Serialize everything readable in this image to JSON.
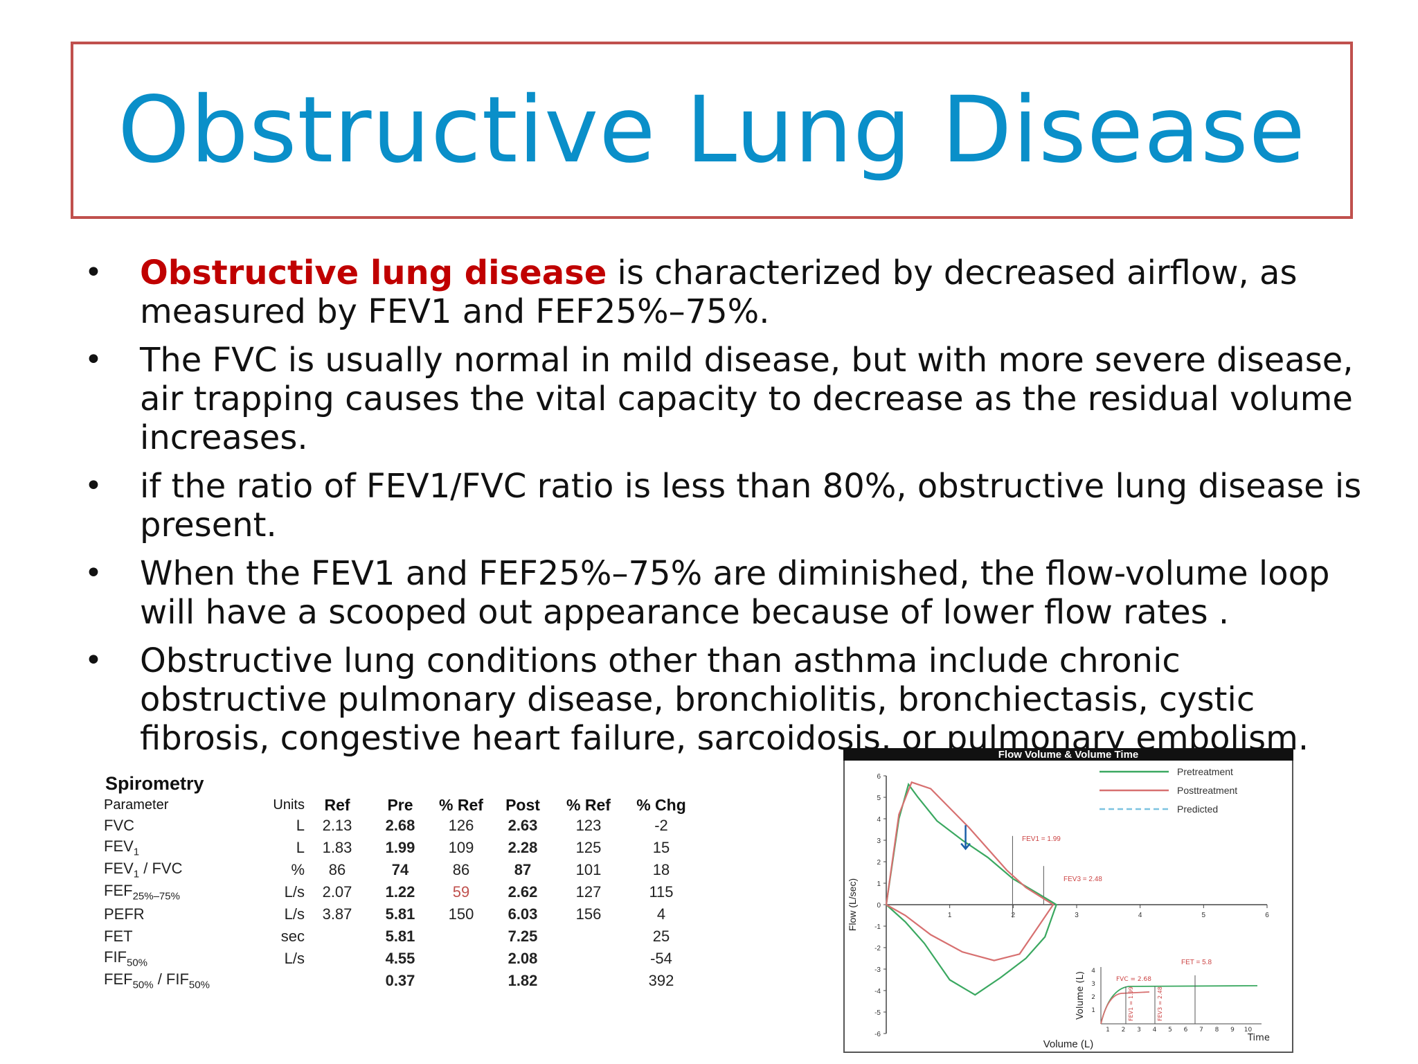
{
  "slide": {
    "title": "Obstructive Lung Disease"
  },
  "bullets": [
    {
      "highlight": "Obstructive lung disease",
      "text": " is characterized by decreased airflow, as measured by FEV1 and FEF25%–75%."
    },
    {
      "highlight": "",
      "text": "The FVC is usually normal in mild disease, but with more severe disease, air trapping causes the vital capacity to decrease as the residual volume increases."
    },
    {
      "highlight": "",
      "text": "if the ratio of FEV1/FVC ratio is less than 80%, obstructive lung disease is present."
    },
    {
      "highlight": "",
      "text": "When the FEV1 and FEF25%–75% are diminished, the flow-volume loop will have a scooped out appearance because of lower flow rates ."
    },
    {
      "highlight": "",
      "text": "Obstructive lung conditions other than asthma include chronic obstructive pulmonary disease, bronchiolitis, bronchiectasis, cystic fibrosis, congestive heart failure, sarcoidosis, or pulmonary embolism."
    }
  ],
  "spirometry": {
    "heading": "Spirometry",
    "columns": [
      "Parameter",
      "Units",
      "Ref",
      "Pre",
      "% Ref",
      "Post",
      "% Ref",
      "% Chg"
    ],
    "rows": [
      {
        "param": "FVC",
        "sub": "",
        "param2": "",
        "sub2": "",
        "units": "L",
        "ref": "2.13",
        "pre": "2.68",
        "pref": "126",
        "post": "2.63",
        "postref": "123",
        "chg": "-2"
      },
      {
        "param": "FEV",
        "sub": "1",
        "param2": "",
        "sub2": "",
        "units": "L",
        "ref": "1.83",
        "pre": "1.99",
        "pref": "109",
        "post": "2.28",
        "postref": "125",
        "chg": "15"
      },
      {
        "param": "FEV",
        "sub": "1",
        "param2": " / FVC",
        "sub2": "",
        "units": "%",
        "ref": "86",
        "pre": "74",
        "pref": "86",
        "post": "87",
        "postref": "101",
        "chg": "18"
      },
      {
        "param": "FEF",
        "sub": "25%–75%",
        "param2": "",
        "sub2": "",
        "units": "L/s",
        "ref": "2.07",
        "pre": "1.22",
        "pref": "59",
        "post": "2.62",
        "postref": "127",
        "chg": "115"
      },
      {
        "param": "PEFR",
        "sub": "",
        "param2": "",
        "sub2": "",
        "units": "L/s",
        "ref": "3.87",
        "pre": "5.81",
        "pref": "150",
        "post": "6.03",
        "postref": "156",
        "chg": "4"
      },
      {
        "param": "FET",
        "sub": "",
        "param2": "",
        "sub2": "",
        "units": "sec",
        "ref": "",
        "pre": "5.81",
        "pref": "",
        "post": "7.25",
        "postref": "",
        "chg": "25"
      },
      {
        "param": "FIF",
        "sub": "50%",
        "param2": "",
        "sub2": "",
        "units": "L/s",
        "ref": "",
        "pre": "4.55",
        "pref": "",
        "post": "2.08",
        "postref": "",
        "chg": "-54"
      },
      {
        "param": "FEF",
        "sub": "50%",
        "param2": " / FIF",
        "sub2": "50%",
        "units": "",
        "ref": "",
        "pre": "0.37",
        "pref": "",
        "post": "1.82",
        "postref": "",
        "chg": "392"
      }
    ]
  },
  "chart_data": {
    "type": "line",
    "title": "Flow Volume & Volume Time",
    "xlabel": "Volume (L)",
    "ylabel": "Flow (L/sec)",
    "xlim": [
      0,
      6
    ],
    "ylim": [
      -6,
      6
    ],
    "x_ticks": [
      "1",
      "2",
      "3",
      "4",
      "5",
      "6"
    ],
    "y_ticks": [
      "6",
      "5",
      "4",
      "3",
      "2",
      "1",
      "0",
      "-1",
      "-2",
      "-3",
      "-4",
      "-5",
      "-6"
    ],
    "legend": [
      "Pretreatment",
      "Posttreatment",
      "Predicted"
    ],
    "legend_position": "top-right",
    "colors": {
      "pretreatment": "#3aa860",
      "posttreatment": "#d77070",
      "predicted": "#7cc3e0"
    },
    "annotations": [
      "FEV1 = 1.99",
      "FEV3 = 2.48",
      "FET = 5.8",
      "FVC = 2.68"
    ],
    "series": [
      {
        "name": "Pretreatment",
        "points": [
          [
            0,
            0
          ],
          [
            0.2,
            4.0
          ],
          [
            0.35,
            5.6
          ],
          [
            0.5,
            5.0
          ],
          [
            0.8,
            3.9
          ],
          [
            1.2,
            3.0
          ],
          [
            1.6,
            2.2
          ],
          [
            2.0,
            1.2
          ],
          [
            2.4,
            0.5
          ],
          [
            2.68,
            0
          ],
          [
            2.5,
            -1.5
          ],
          [
            2.2,
            -2.5
          ],
          [
            1.8,
            -3.4
          ],
          [
            1.4,
            -4.2
          ],
          [
            1.0,
            -3.5
          ],
          [
            0.6,
            -1.8
          ],
          [
            0.3,
            -0.8
          ],
          [
            0,
            0
          ]
        ]
      },
      {
        "name": "Posttreatment",
        "points": [
          [
            0,
            0
          ],
          [
            0.2,
            4.2
          ],
          [
            0.4,
            5.7
          ],
          [
            0.7,
            5.4
          ],
          [
            1.0,
            4.5
          ],
          [
            1.3,
            3.6
          ],
          [
            1.6,
            2.6
          ],
          [
            1.9,
            1.6
          ],
          [
            2.2,
            0.8
          ],
          [
            2.63,
            0
          ],
          [
            2.4,
            -1.0
          ],
          [
            2.1,
            -2.3
          ],
          [
            1.7,
            -2.6
          ],
          [
            1.2,
            -2.2
          ],
          [
            0.7,
            -1.4
          ],
          [
            0.3,
            -0.5
          ],
          [
            0,
            0
          ]
        ]
      }
    ],
    "inset": {
      "ylabel": "Volume (L)",
      "xlabel": "Time",
      "x_ticks": [
        "1",
        "2",
        "3",
        "4",
        "5",
        "6",
        "7",
        "8",
        "9",
        "10"
      ],
      "y_ticks": [
        "4",
        "3",
        "2",
        "1"
      ],
      "labels": [
        "FEV1 = 1.99",
        "FEV3 = 2.48"
      ]
    }
  }
}
